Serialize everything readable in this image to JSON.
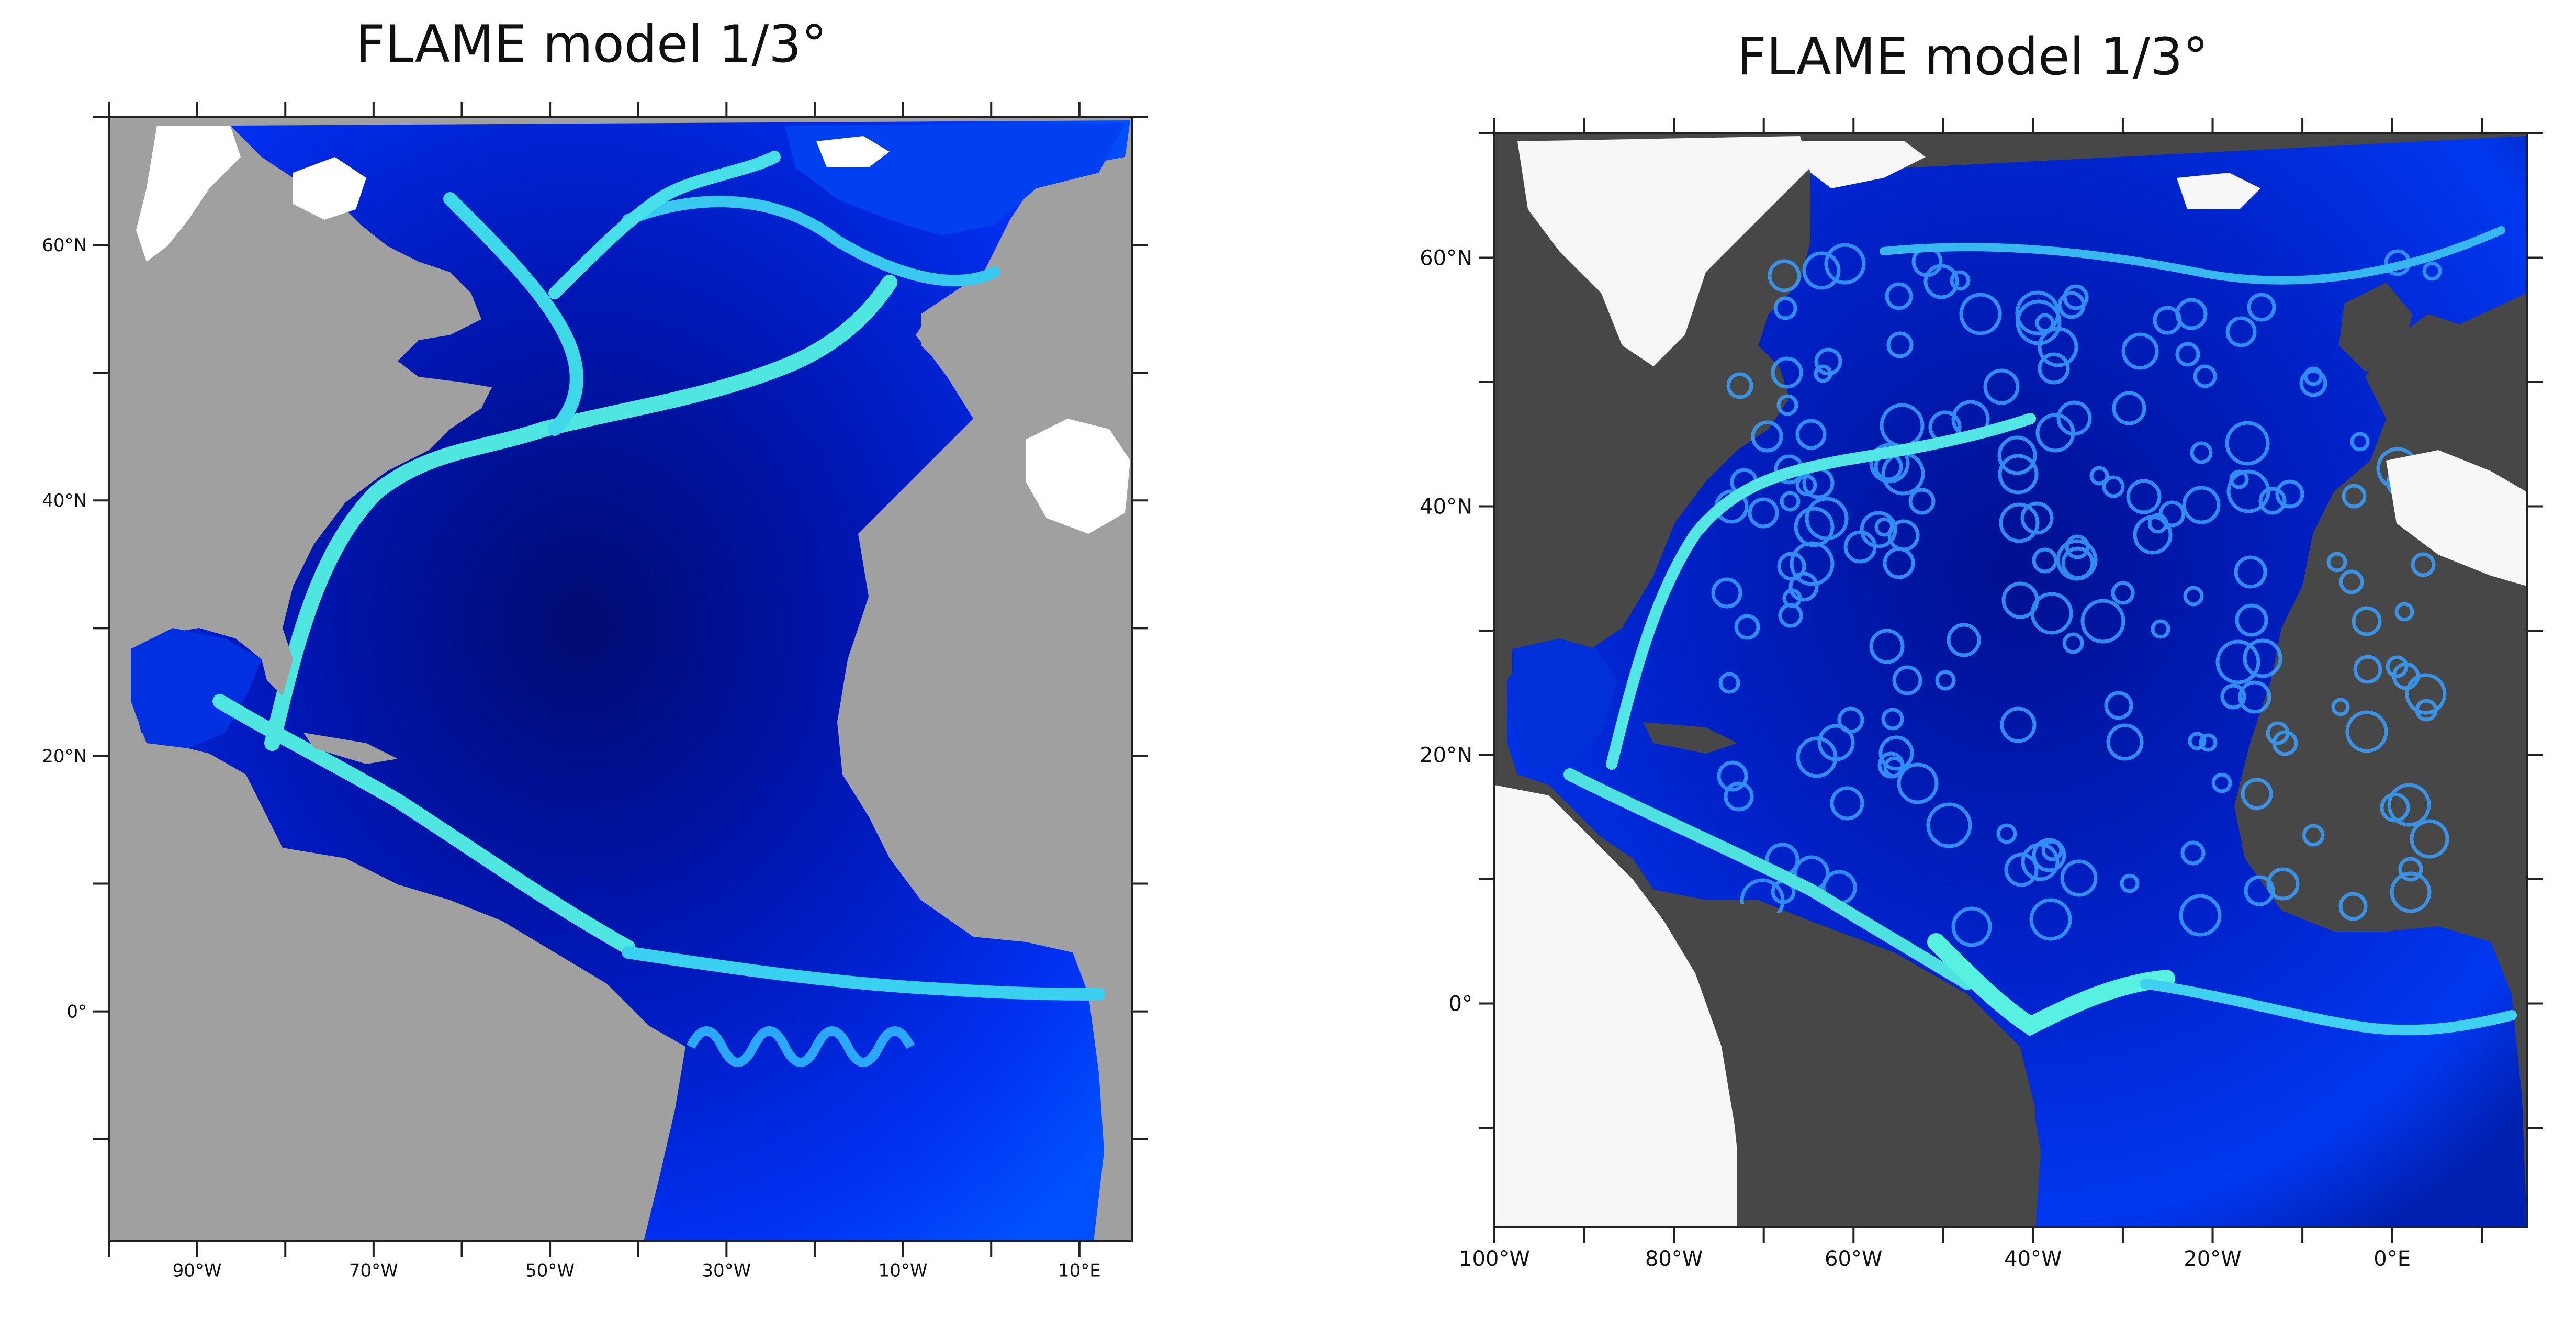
{
  "panels": [
    {
      "title": "FLAME model 1/3°",
      "land_color": "#a0a0a0",
      "ice_color": "#ffffff",
      "y_ticks": [
        {
          "value": 60,
          "label": "60°N"
        },
        {
          "value": 40,
          "label": "40°N"
        },
        {
          "value": 20,
          "label": "20°N"
        },
        {
          "value": 0,
          "label": "0°"
        }
      ],
      "x_ticks": [
        {
          "value": -90,
          "label": "90°W"
        },
        {
          "value": -70,
          "label": "70°W"
        },
        {
          "value": -50,
          "label": "50°W"
        },
        {
          "value": -30,
          "label": "30°W"
        },
        {
          "value": -10,
          "label": "10°W"
        },
        {
          "value": 10,
          "label": "10°E"
        }
      ]
    },
    {
      "title": "FLAME model 1/3°",
      "land_color": "#474747",
      "ice_color": "#f7f7f7",
      "y_ticks": [
        {
          "value": 60,
          "label": "60°N"
        },
        {
          "value": 40,
          "label": "40°N"
        },
        {
          "value": 20,
          "label": "20°N"
        },
        {
          "value": 0,
          "label": "0°"
        }
      ],
      "x_ticks": [
        {
          "value": -100,
          "label": "100°W"
        },
        {
          "value": -80,
          "label": "80°W"
        },
        {
          "value": -60,
          "label": "60°W"
        },
        {
          "value": -40,
          "label": "40°W"
        },
        {
          "value": -20,
          "label": "20°W"
        },
        {
          "value": 0,
          "label": "0°E"
        }
      ]
    }
  ],
  "ocean_colors": {
    "deep": "#00005a",
    "mid": "#0020e0",
    "light": "#1a6cff",
    "current": "#4de8e0"
  }
}
